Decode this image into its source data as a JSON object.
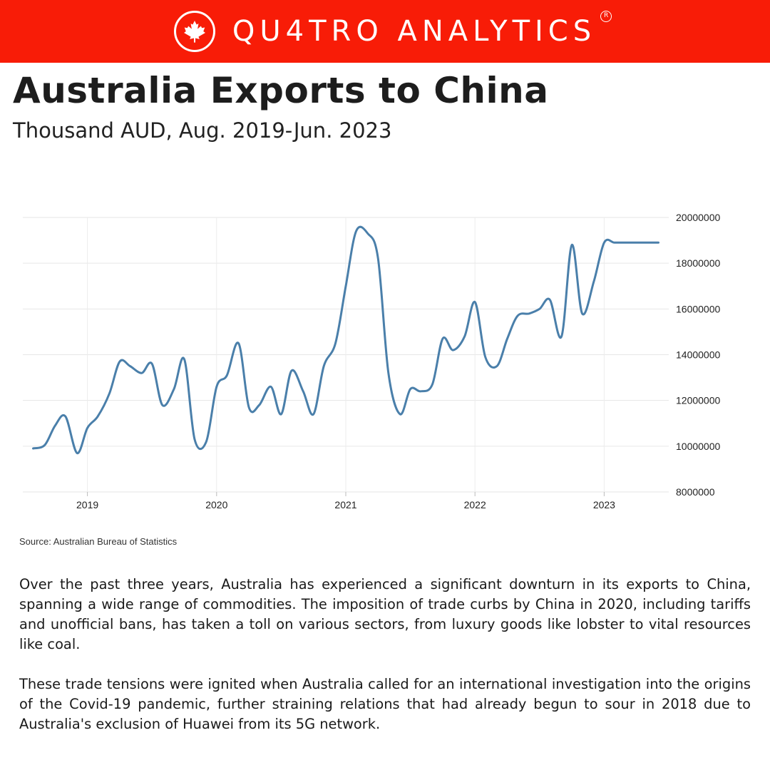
{
  "header": {
    "brand": "QU4TRO ANALYTICS",
    "registered_mark": "R",
    "logo_icon": "maple-leaf-icon",
    "brand_color": "#f81c07"
  },
  "title": "Australia Exports to China",
  "subtitle": "Thousand AUD, Aug. 2019-Jun. 2023",
  "source": "Source: Australian Bureau of Statistics",
  "paragraphs": [
    "Over the past three years, Australia has experienced a significant downturn in its exports to China, spanning a wide range of commodities. The imposition of trade curbs by China in 2020, including tariffs and unofficial bans, has taken a toll on various sectors, from luxury goods like lobster to vital resources like coal.",
    "These trade tensions were ignited when Australia called for an international investigation into the origins of the Covid-19 pandemic, further straining relations that had already begun to sour in 2018 due to Australia's exclusion of Huawei from its 5G network."
  ],
  "chart_data": {
    "type": "line",
    "title": "",
    "xlabel": "",
    "ylabel": "",
    "line_color": "#4a7faa",
    "grid": true,
    "y_axis_side": "right",
    "ylim": [
      8000000,
      20000000
    ],
    "yticks": [
      8000000,
      10000000,
      12000000,
      14000000,
      16000000,
      18000000,
      20000000
    ],
    "xlim": [
      2018.5,
      2023.5
    ],
    "xticks": [
      2019,
      2020,
      2021,
      2022,
      2023
    ],
    "series": [
      {
        "name": "",
        "x": [
          2018.58,
          2018.67,
          2018.75,
          2018.83,
          2018.92,
          2019.0,
          2019.08,
          2019.17,
          2019.25,
          2019.33,
          2019.42,
          2019.5,
          2019.58,
          2019.67,
          2019.75,
          2019.83,
          2019.92,
          2020.0,
          2020.08,
          2020.17,
          2020.25,
          2020.33,
          2020.42,
          2020.5,
          2020.58,
          2020.67,
          2020.75,
          2020.83,
          2020.92,
          2021.0,
          2021.08,
          2021.17,
          2021.25,
          2021.33,
          2021.42,
          2021.5,
          2021.58,
          2021.67,
          2021.75,
          2021.83,
          2021.92,
          2022.0,
          2022.08,
          2022.17,
          2022.25,
          2022.33,
          2022.42,
          2022.5,
          2022.58,
          2022.67,
          2022.75,
          2022.83,
          2022.92,
          2023.0,
          2023.08,
          2023.17,
          2023.25,
          2023.33,
          2023.42
        ],
        "y": [
          9900000,
          10050000,
          10900000,
          11300000,
          9700000,
          10800000,
          11300000,
          12300000,
          13700000,
          13500000,
          13200000,
          13600000,
          11800000,
          12500000,
          13800000,
          10300000,
          10200000,
          12600000,
          13100000,
          14500000,
          11700000,
          11800000,
          12600000,
          11400000,
          13300000,
          12400000,
          11400000,
          13500000,
          14500000,
          17000000,
          19400000,
          19300000,
          18200000,
          13200000,
          11400000,
          12500000,
          12400000,
          12700000,
          14700000,
          14200000,
          14800000,
          16300000,
          13900000,
          13500000,
          14700000,
          15700000,
          15800000,
          16000000,
          16400000,
          14800000,
          18800000,
          15800000,
          17200000,
          18900000,
          18900000,
          18900000,
          18900000,
          18900000,
          18900000
        ]
      }
    ]
  }
}
